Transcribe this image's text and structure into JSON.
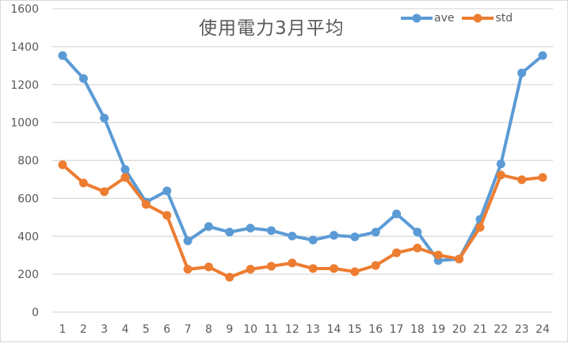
{
  "chart_data": {
    "type": "line",
    "title": "使用電力3月平均",
    "xlabel": "",
    "ylabel": "",
    "ylim": [
      0,
      1600
    ],
    "yticks": [
      0,
      200,
      400,
      600,
      800,
      1000,
      1200,
      1400,
      1600
    ],
    "grid": true,
    "legend_position": "top-right",
    "categories": [
      "1",
      "2",
      "3",
      "4",
      "5",
      "6",
      "7",
      "8",
      "9",
      "10",
      "11",
      "12",
      "13",
      "14",
      "15",
      "16",
      "17",
      "18",
      "19",
      "20",
      "21",
      "22",
      "23",
      "24"
    ],
    "series": [
      {
        "name": "ave",
        "color": "#5B9BD5",
        "values": [
          1353,
          1232,
          1023,
          752,
          580,
          639,
          376,
          451,
          422,
          443,
          430,
          401,
          380,
          405,
          397,
          422,
          518,
          422,
          272,
          280,
          489,
          781,
          1261,
          1353
        ]
      },
      {
        "name": "std",
        "color": "#ED7D31",
        "values": [
          777,
          681,
          635,
          710,
          568,
          510,
          226,
          238,
          184,
          226,
          242,
          259,
          230,
          230,
          213,
          246,
          313,
          338,
          301,
          280,
          447,
          723,
          698,
          710
        ]
      }
    ]
  },
  "legend": {
    "items": [
      {
        "label": "ave",
        "color": "#5B9BD5"
      },
      {
        "label": "std",
        "color": "#ED7D31"
      }
    ]
  }
}
